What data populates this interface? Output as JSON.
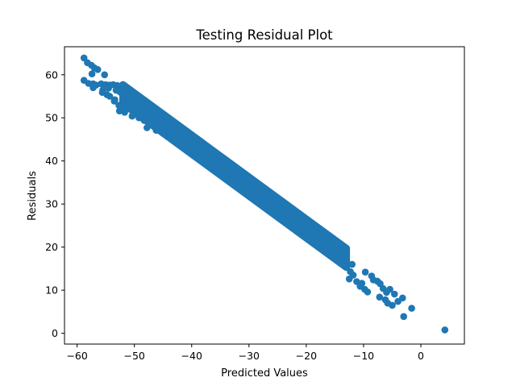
{
  "chart_data": {
    "type": "scatter",
    "title": "Testing Residual Plot",
    "xlabel": "Predicted Values",
    "ylabel": "Residuals",
    "xlim": [
      -62.2,
      7.6
    ],
    "ylim": [
      -2.5,
      66.5
    ],
    "xticks": [
      -60,
      -50,
      -40,
      -30,
      -20,
      -10,
      0
    ],
    "yticks": [
      0,
      10,
      20,
      30,
      40,
      50,
      60
    ],
    "grid": false,
    "marker_color": "#1f77b4",
    "band": {
      "x_start": -52,
      "x_end": -13,
      "y_at_start": 55.5,
      "y_at_end": 17.5,
      "half_width": 2.2
    },
    "points": [
      {
        "x": -58.8,
        "y": 63.9
      },
      {
        "x": -58.2,
        "y": 62.8
      },
      {
        "x": -57.5,
        "y": 62.2
      },
      {
        "x": -57.0,
        "y": 61.6
      },
      {
        "x": -56.4,
        "y": 61.2
      },
      {
        "x": -57.4,
        "y": 60.2
      },
      {
        "x": -55.2,
        "y": 60.0
      },
      {
        "x": -58.8,
        "y": 58.7
      },
      {
        "x": -58.0,
        "y": 58.0
      },
      {
        "x": -57.2,
        "y": 57.9
      },
      {
        "x": -56.7,
        "y": 57.6
      },
      {
        "x": -55.8,
        "y": 57.9
      },
      {
        "x": -55.0,
        "y": 57.7
      },
      {
        "x": -54.3,
        "y": 57.6
      },
      {
        "x": -53.7,
        "y": 57.7
      },
      {
        "x": -53.0,
        "y": 57.5
      },
      {
        "x": -52.3,
        "y": 57.3
      },
      {
        "x": -57.2,
        "y": 57.0
      },
      {
        "x": -55.5,
        "y": 56.5
      },
      {
        "x": -54.5,
        "y": 56.9
      },
      {
        "x": -53.2,
        "y": 56.4
      },
      {
        "x": -52.5,
        "y": 56.0
      },
      {
        "x": -51.8,
        "y": 55.9
      },
      {
        "x": -51.0,
        "y": 55.4
      },
      {
        "x": -55.6,
        "y": 55.9
      },
      {
        "x": -54.8,
        "y": 55.4
      },
      {
        "x": -54.3,
        "y": 55.0
      },
      {
        "x": -53.4,
        "y": 54.2
      },
      {
        "x": -53.5,
        "y": 53.9
      },
      {
        "x": -51.9,
        "y": 53.6
      },
      {
        "x": -51.4,
        "y": 54.0
      },
      {
        "x": -50.5,
        "y": 53.7
      },
      {
        "x": -49.8,
        "y": 53.3
      },
      {
        "x": -49.2,
        "y": 52.6
      },
      {
        "x": -52.7,
        "y": 52.9
      },
      {
        "x": -51.8,
        "y": 52.5
      },
      {
        "x": -50.7,
        "y": 52.1
      },
      {
        "x": -52.6,
        "y": 51.6
      },
      {
        "x": -51.7,
        "y": 51.3
      },
      {
        "x": -48.5,
        "y": 52.2
      },
      {
        "x": -47.8,
        "y": 51.5
      },
      {
        "x": -47.0,
        "y": 50.9
      },
      {
        "x": -46.5,
        "y": 50.2
      },
      {
        "x": -50.4,
        "y": 50.4
      },
      {
        "x": -49.2,
        "y": 50.0
      },
      {
        "x": -48.3,
        "y": 49.4
      },
      {
        "x": -47.2,
        "y": 48.9
      },
      {
        "x": -45.8,
        "y": 49.0
      },
      {
        "x": -45.0,
        "y": 47.9
      },
      {
        "x": -47.8,
        "y": 47.7
      },
      {
        "x": -46.2,
        "y": 47.1
      },
      {
        "x": -45.0,
        "y": 46.4
      },
      {
        "x": -44.0,
        "y": 45.6
      },
      {
        "x": -42.9,
        "y": 44.7
      },
      {
        "x": -12.0,
        "y": 16.0
      },
      {
        "x": -12.3,
        "y": 14.3
      },
      {
        "x": -11.8,
        "y": 13.5
      },
      {
        "x": -12.5,
        "y": 12.6
      },
      {
        "x": -11.2,
        "y": 12.0
      },
      {
        "x": -10.3,
        "y": 11.6
      },
      {
        "x": -10.6,
        "y": 10.9
      },
      {
        "x": -9.8,
        "y": 10.2
      },
      {
        "x": -9.3,
        "y": 9.6
      },
      {
        "x": -9.7,
        "y": 14.2
      },
      {
        "x": -8.6,
        "y": 13.3
      },
      {
        "x": -8.3,
        "y": 12.4
      },
      {
        "x": -7.6,
        "y": 12.1
      },
      {
        "x": -7.1,
        "y": 11.5
      },
      {
        "x": -6.6,
        "y": 10.4
      },
      {
        "x": -5.4,
        "y": 10.2
      },
      {
        "x": -6.0,
        "y": 9.5
      },
      {
        "x": -4.6,
        "y": 9.1
      },
      {
        "x": -7.2,
        "y": 8.4
      },
      {
        "x": -6.2,
        "y": 7.8
      },
      {
        "x": -5.8,
        "y": 7.0
      },
      {
        "x": -5.0,
        "y": 6.5
      },
      {
        "x": -3.2,
        "y": 8.2
      },
      {
        "x": -4.0,
        "y": 7.4
      },
      {
        "x": -1.6,
        "y": 5.8
      },
      {
        "x": -3.0,
        "y": 3.9
      },
      {
        "x": 4.2,
        "y": 0.8
      }
    ]
  }
}
